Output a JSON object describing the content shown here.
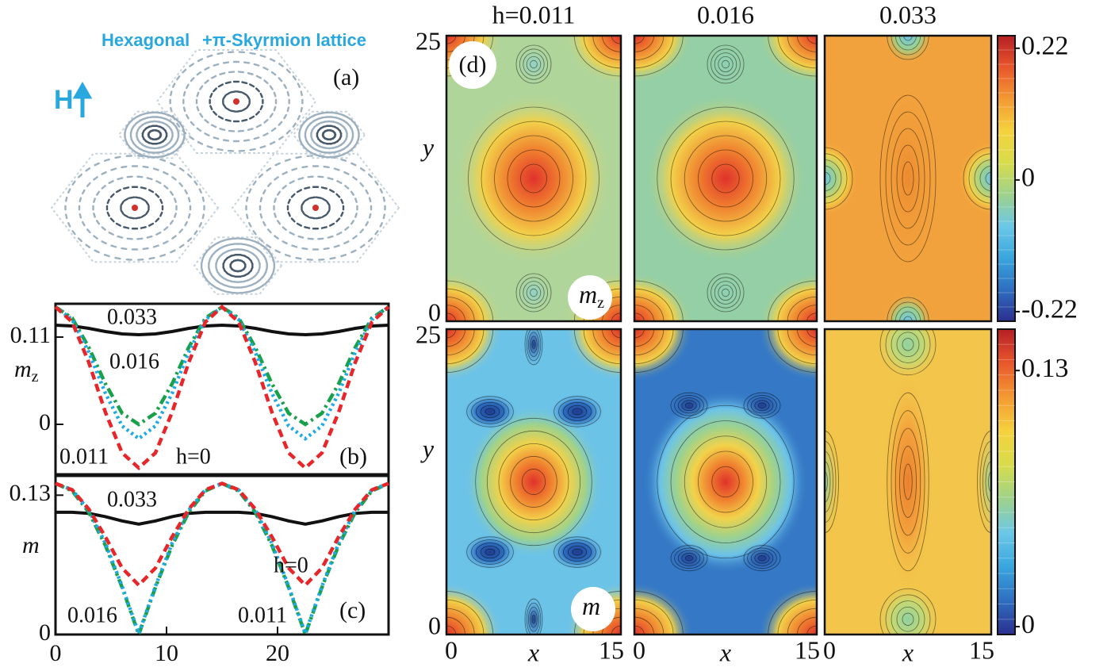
{
  "panel_a": {
    "title_left": "Hexagonal",
    "title_right": "+π-Skyrmion lattice",
    "field_label": "H",
    "label": "(a)"
  },
  "chart_data": [
    {
      "type": "line",
      "label": "(b)",
      "ylabel": "m",
      "ylabel_subscript": "z",
      "x": [
        0,
        1.5,
        3,
        4.5,
        6,
        7.5,
        9,
        10.5,
        12,
        13.5,
        15,
        16.5,
        18,
        19.5,
        21,
        22.5,
        24,
        25.5,
        27,
        28.5,
        30
      ],
      "xlim": [
        0,
        30
      ],
      "ylim": [
        -0.063,
        0.152
      ],
      "yticks": [
        0,
        0.11
      ],
      "series": [
        {
          "name": "h=0",
          "color": "#e8262a",
          "linestyle": "dashed",
          "values": [
            0.148,
            0.129,
            0.078,
            0.015,
            -0.036,
            -0.055,
            -0.036,
            0.015,
            0.078,
            0.129,
            0.148,
            0.129,
            0.078,
            0.015,
            -0.036,
            -0.055,
            -0.036,
            0.015,
            0.078,
            0.129,
            0.148
          ]
        },
        {
          "name": "0.011",
          "color": "#1fa9e6",
          "linestyle": "dotted",
          "values": [
            0.148,
            0.132,
            0.091,
            0.039,
            -0.002,
            -0.018,
            -0.002,
            0.039,
            0.091,
            0.132,
            0.148,
            0.132,
            0.091,
            0.039,
            -0.002,
            -0.018,
            -0.002,
            0.039,
            0.091,
            0.132,
            0.148
          ]
        },
        {
          "name": "0.016",
          "color": "#18a04a",
          "linestyle": "dashdot",
          "values": [
            0.148,
            0.134,
            0.097,
            0.051,
            0.014,
            0,
            0.014,
            0.051,
            0.097,
            0.134,
            0.148,
            0.134,
            0.097,
            0.051,
            0.014,
            0,
            0.014,
            0.051,
            0.097,
            0.134,
            0.148
          ]
        },
        {
          "name": "0.033",
          "color": "#111111",
          "linestyle": "solid",
          "values": [
            0.125,
            0.124,
            0.121,
            0.117,
            0.114,
            0.113,
            0.114,
            0.117,
            0.121,
            0.124,
            0.125,
            0.124,
            0.121,
            0.117,
            0.114,
            0.113,
            0.114,
            0.117,
            0.121,
            0.124,
            0.125
          ]
        }
      ]
    },
    {
      "type": "line",
      "label": "(c)",
      "ylabel": "m",
      "x": [
        0,
        1.5,
        3,
        4.5,
        6,
        7.5,
        9,
        10.5,
        12,
        13.5,
        15,
        16.5,
        18,
        19.5,
        21,
        22.5,
        24,
        25.5,
        27,
        28.5,
        30
      ],
      "xlim": [
        0,
        30
      ],
      "xticks": [
        0,
        10,
        20
      ],
      "ylim": [
        0,
        0.148
      ],
      "yticks": [
        0,
        0.13
      ],
      "series": [
        {
          "name": "h=0",
          "color": "#e8262a",
          "linestyle": "dashed",
          "values": [
            0.141,
            0.135,
            0.117,
            0.091,
            0.062,
            0.046,
            0.062,
            0.091,
            0.117,
            0.135,
            0.141,
            0.135,
            0.117,
            0.091,
            0.062,
            0.046,
            0.062,
            0.091,
            0.117,
            0.135,
            0.141
          ]
        },
        {
          "name": "0.011",
          "color": "#1fa9e6",
          "linestyle": "dotted",
          "values": [
            0.141,
            0.135,
            0.116,
            0.085,
            0.045,
            0.001,
            0.045,
            0.085,
            0.116,
            0.135,
            0.141,
            0.135,
            0.116,
            0.085,
            0.045,
            0.001,
            0.045,
            0.085,
            0.116,
            0.135,
            0.141
          ]
        },
        {
          "name": "0.016",
          "color": "#18a04a",
          "linestyle": "dashdot",
          "values": [
            0.141,
            0.134,
            0.114,
            0.083,
            0.044,
            0,
            0.044,
            0.083,
            0.114,
            0.134,
            0.141,
            0.134,
            0.114,
            0.083,
            0.044,
            0,
            0.044,
            0.083,
            0.114,
            0.134,
            0.141
          ]
        },
        {
          "name": "0.033",
          "color": "#111111",
          "linestyle": "solid",
          "values": [
            0.114,
            0.114,
            0.113,
            0.11,
            0.106,
            0.103,
            0.106,
            0.11,
            0.113,
            0.114,
            0.114,
            0.114,
            0.113,
            0.11,
            0.106,
            0.103,
            0.106,
            0.11,
            0.113,
            0.114,
            0.114
          ]
        }
      ]
    }
  ],
  "panel_d": {
    "label": "(d)",
    "columns": [
      "h=0.011",
      "0.016",
      "0.033"
    ],
    "y_label": "y",
    "x_label": "x",
    "y_tick_labels": [
      "0",
      "25"
    ],
    "x_tick_labels": [
      "0",
      "15"
    ],
    "row_labels": [
      {
        "symbol": "m",
        "sub": "z"
      },
      {
        "symbol": "m"
      }
    ],
    "colorbars": [
      {
        "lim": [
          -0.236,
          0.241
        ],
        "ticks": [
          0.22,
          0,
          -0.22
        ]
      },
      {
        "lim": [
          -0.004,
          0.151
        ],
        "ticks": [
          0.13,
          0
        ]
      }
    ]
  }
}
